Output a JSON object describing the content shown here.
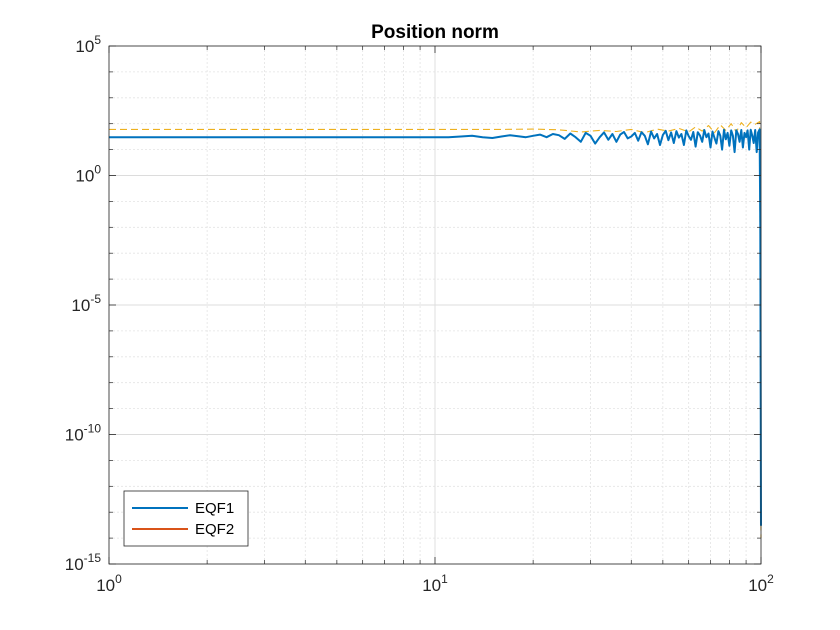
{
  "chart_data": {
    "type": "line",
    "title": "Position norm",
    "xlabel": "",
    "ylabel": "",
    "xscale": "log",
    "yscale": "log",
    "xlim": [
      1,
      100
    ],
    "ylim": [
      1e-15,
      100000
    ],
    "grid": true,
    "minor_grid": true,
    "x_ticks": [
      {
        "value": 1,
        "base": "10",
        "exp": "0"
      },
      {
        "value": 10,
        "base": "10",
        "exp": "1"
      },
      {
        "value": 100,
        "base": "10",
        "exp": "2"
      }
    ],
    "y_ticks": [
      {
        "value": 1e-15,
        "base": "10",
        "exp": "-15"
      },
      {
        "value": 1e-10,
        "base": "10",
        "exp": "-10"
      },
      {
        "value": 1e-05,
        "base": "10",
        "exp": "-5"
      },
      {
        "value": 1,
        "base": "10",
        "exp": "0"
      },
      {
        "value": 100000,
        "base": "10",
        "exp": "5"
      }
    ],
    "legend_placement": "bottom-left",
    "legend": [
      "EQF1",
      "EQF2"
    ],
    "series": [
      {
        "name": "EQF1",
        "color": "#0072BD",
        "style": "solid",
        "in_legend": true,
        "x": [
          1,
          2,
          4,
          8,
          10,
          11,
          12,
          13,
          14,
          15,
          16,
          17,
          18,
          19,
          20,
          21,
          22,
          23,
          24,
          25,
          26,
          27,
          28,
          29,
          30,
          31,
          32,
          33,
          34,
          35,
          36,
          37,
          38,
          39,
          40,
          41,
          42,
          43,
          44,
          45,
          46,
          47,
          48,
          49,
          50,
          51,
          52,
          53,
          54,
          55,
          56,
          57,
          58,
          59,
          60,
          61,
          62,
          63,
          64,
          65,
          66,
          67,
          68,
          69,
          70,
          71,
          72,
          73,
          74,
          75,
          76,
          77,
          78,
          79,
          80,
          81,
          82,
          83,
          84,
          85,
          86,
          87,
          88,
          89,
          90,
          91,
          92,
          93,
          94,
          95,
          96,
          97,
          98,
          99,
          99.5,
          100
        ],
        "y": [
          30,
          30,
          30,
          30,
          30,
          30,
          32,
          34,
          30,
          28,
          32,
          36,
          33,
          30,
          34,
          38,
          30,
          40,
          36,
          26,
          42,
          30,
          20,
          44,
          34,
          17,
          30,
          46,
          24,
          40,
          20,
          38,
          48,
          27,
          32,
          44,
          22,
          47,
          34,
          16,
          50,
          27,
          40,
          15,
          37,
          53,
          23,
          46,
          18,
          52,
          29,
          40,
          15,
          55,
          33,
          24,
          48,
          13,
          47,
          35,
          20,
          57,
          30,
          42,
          12,
          50,
          28,
          17,
          52,
          34,
          10,
          58,
          25,
          44,
          14,
          55,
          34,
          8,
          56,
          40,
          20,
          57,
          12,
          44,
          30,
          55,
          10,
          58,
          35,
          18,
          57,
          8,
          46,
          60,
          0.01,
          3e-14
        ]
      },
      {
        "name": "EQF2",
        "color": "#D95319",
        "style": "solid",
        "in_legend": true,
        "x": [],
        "y": []
      },
      {
        "name": "",
        "color": "#EDB120",
        "style": "dashed",
        "in_legend": false,
        "x": [
          1,
          2,
          4,
          8,
          12,
          16,
          20,
          24,
          28,
          32,
          36,
          40,
          44,
          48,
          52,
          56,
          60,
          63,
          66,
          69,
          72,
          75,
          78,
          81,
          84,
          87,
          90,
          93,
          96,
          99,
          99.5,
          100
        ],
        "y": [
          60,
          60,
          60,
          60,
          60,
          60,
          62,
          58,
          48,
          55,
          50,
          60,
          45,
          62,
          52,
          66,
          48,
          75,
          52,
          85,
          45,
          90,
          55,
          100,
          48,
          110,
          70,
          115,
          95,
          120,
          1e-05,
          1e-14
        ]
      }
    ]
  }
}
